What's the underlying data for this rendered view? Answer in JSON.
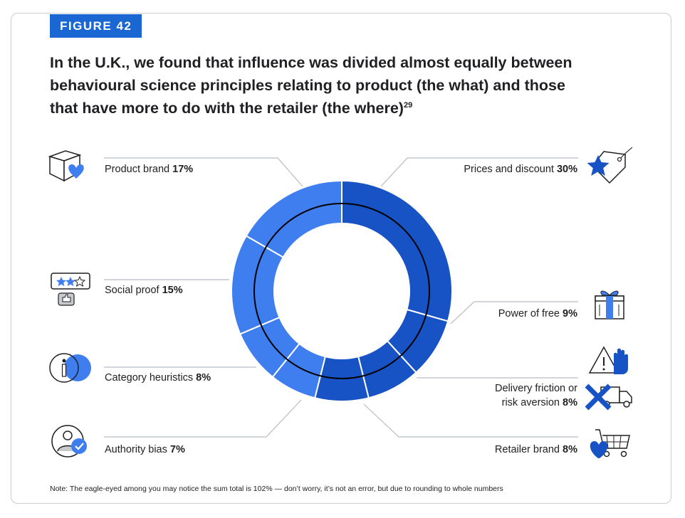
{
  "figure_tag": "FIGURE 42",
  "title": "In the U.K., we found that influence was divided almost equally between behavioural science principles relating to product (the what) and those that have more to do with the retailer (the where)",
  "title_footnote": "29",
  "note": "Note: The eagle-eyed among you may notice the sum total is 102% — don’t worry, it’s not an error, but due to rounding to whole numbers",
  "colors": {
    "accent": "#1a66d2",
    "retailer": "#1753c4",
    "product": "#3f7eef",
    "separator": "#ffffff",
    "ring": "#000000",
    "leader": "#b8bcc2"
  },
  "chart_data": {
    "type": "pie",
    "variant": "donut",
    "unit": "%",
    "slices": [
      {
        "name": "Prices and discount",
        "value": 30,
        "value_label": "30%",
        "group": "retailer",
        "icon": "star-price-tag-icon"
      },
      {
        "name": "Power of free",
        "value": 9,
        "value_label": "9%",
        "group": "retailer",
        "icon": "gift-box-icon"
      },
      {
        "name": "Delivery friction or risk aversion",
        "name_line1": "Delivery friction or",
        "name_line2": "risk aversion",
        "value": 8,
        "value_label": "8%",
        "group": "retailer",
        "icon": "warning-delivery-truck-icon"
      },
      {
        "name": "Retailer brand",
        "value": 8,
        "value_label": "8%",
        "group": "retailer",
        "icon": "heart-shopping-cart-icon"
      },
      {
        "name": "Authority bias",
        "value": 7,
        "value_label": "7%",
        "group": "product",
        "icon": "verified-person-icon"
      },
      {
        "name": "Category heuristics",
        "value": 8,
        "value_label": "8%",
        "group": "product",
        "icon": "info-circle-icon"
      },
      {
        "name": "Social proof",
        "value": 15,
        "value_label": "15%",
        "group": "product",
        "icon": "star-rating-thumbs-up-icon"
      },
      {
        "name": "Product brand",
        "value": 17,
        "value_label": "17%",
        "group": "product",
        "icon": "box-heart-icon"
      }
    ],
    "total": 102
  }
}
